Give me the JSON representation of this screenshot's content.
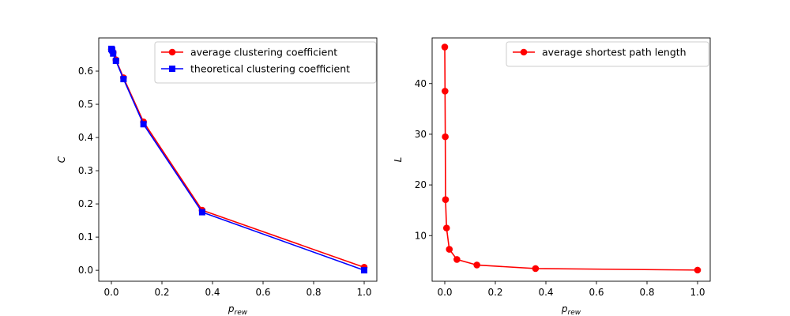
{
  "chart_data": [
    {
      "type": "line",
      "title": "",
      "xlabel": "p",
      "xlabel_sub": "rew",
      "ylabel": "C",
      "xlim": [
        -0.05,
        1.05
      ],
      "ylim": [
        -0.033,
        0.7
      ],
      "xticks": [
        0.0,
        0.2,
        0.4,
        0.6,
        0.8,
        1.0
      ],
      "xtick_labels": [
        "0.0",
        "0.2",
        "0.4",
        "0.6",
        "0.8",
        "1.0"
      ],
      "yticks": [
        0.0,
        0.1,
        0.2,
        0.3,
        0.4,
        0.5,
        0.6
      ],
      "ytick_labels": [
        "0.0",
        "0.1",
        "0.2",
        "0.3",
        "0.4",
        "0.5",
        "0.6"
      ],
      "grid": false,
      "legend_position": "top-right",
      "series": [
        {
          "name": "average clustering coefficient",
          "color": "#ff0000",
          "marker": "circle",
          "x": [
            0.0,
            0.001,
            0.003,
            0.007,
            0.018,
            0.048,
            0.127,
            0.359,
            1.0
          ],
          "y": [
            0.666,
            0.665,
            0.662,
            0.656,
            0.634,
            0.58,
            0.447,
            0.181,
            0.009
          ]
        },
        {
          "name": "theoretical clustering coefficient",
          "color": "#0000ff",
          "marker": "square",
          "x": [
            0.0,
            0.001,
            0.003,
            0.007,
            0.018,
            0.048,
            0.127,
            0.359,
            1.0
          ],
          "y": [
            0.667,
            0.666,
            0.663,
            0.653,
            0.631,
            0.576,
            0.44,
            0.175,
            0.0
          ]
        }
      ]
    },
    {
      "type": "line",
      "title": "",
      "xlabel": "p",
      "xlabel_sub": "rew",
      "ylabel": "L",
      "xlim": [
        -0.05,
        1.05
      ],
      "ylim": [
        1.0,
        49.0
      ],
      "xticks": [
        0.0,
        0.2,
        0.4,
        0.6,
        0.8,
        1.0
      ],
      "xtick_labels": [
        "0.0",
        "0.2",
        "0.4",
        "0.6",
        "0.8",
        "1.0"
      ],
      "yticks": [
        10,
        20,
        30,
        40
      ],
      "ytick_labels": [
        "10",
        "20",
        "30",
        "40"
      ],
      "grid": false,
      "legend_position": "top-right",
      "series": [
        {
          "name": "average shortest path length",
          "color": "#ff0000",
          "marker": "circle",
          "x": [
            0.0,
            0.001,
            0.002,
            0.003,
            0.007,
            0.018,
            0.048,
            0.127,
            0.359,
            1.0
          ],
          "y": [
            47.2,
            38.5,
            29.5,
            17.1,
            11.5,
            7.3,
            5.3,
            4.2,
            3.5,
            3.2
          ]
        }
      ]
    }
  ]
}
